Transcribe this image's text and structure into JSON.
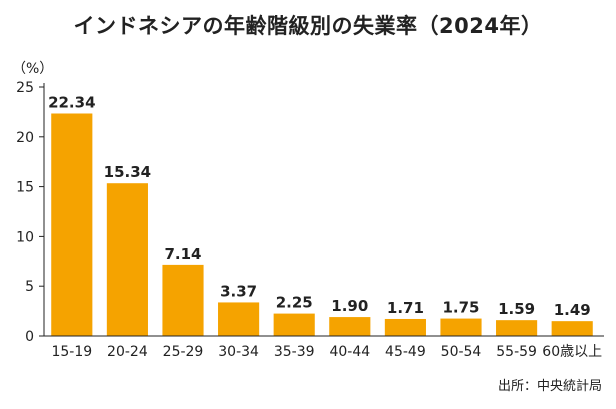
{
  "title": "インドネシアの年齢階級別の失業率（2024年）",
  "unit_label": "（%）",
  "source": "出所：中央統計局",
  "colors": {
    "bar": "#F5A300",
    "axis": "#222222",
    "grid": "#999999"
  },
  "chart_data": {
    "type": "bar",
    "title": "インドネシアの年齢階級別の失業率（2024年）",
    "ylabel": "（%）",
    "xlabel": "",
    "ylim": [
      0,
      25
    ],
    "yticks": [
      0,
      5,
      10,
      15,
      20,
      25
    ],
    "grid": false,
    "categories": [
      "15-19",
      "20-24",
      "25-29",
      "30-34",
      "35-39",
      "40-44",
      "45-49",
      "50-54",
      "55-59",
      "60歳以上"
    ],
    "values": [
      22.34,
      15.34,
      7.14,
      3.37,
      2.25,
      1.9,
      1.71,
      1.75,
      1.59,
      1.49
    ],
    "value_labels": [
      "22.34",
      "15.34",
      "7.14",
      "3.37",
      "2.25",
      "1.90",
      "1.71",
      "1.75",
      "1.59",
      "1.49"
    ]
  }
}
